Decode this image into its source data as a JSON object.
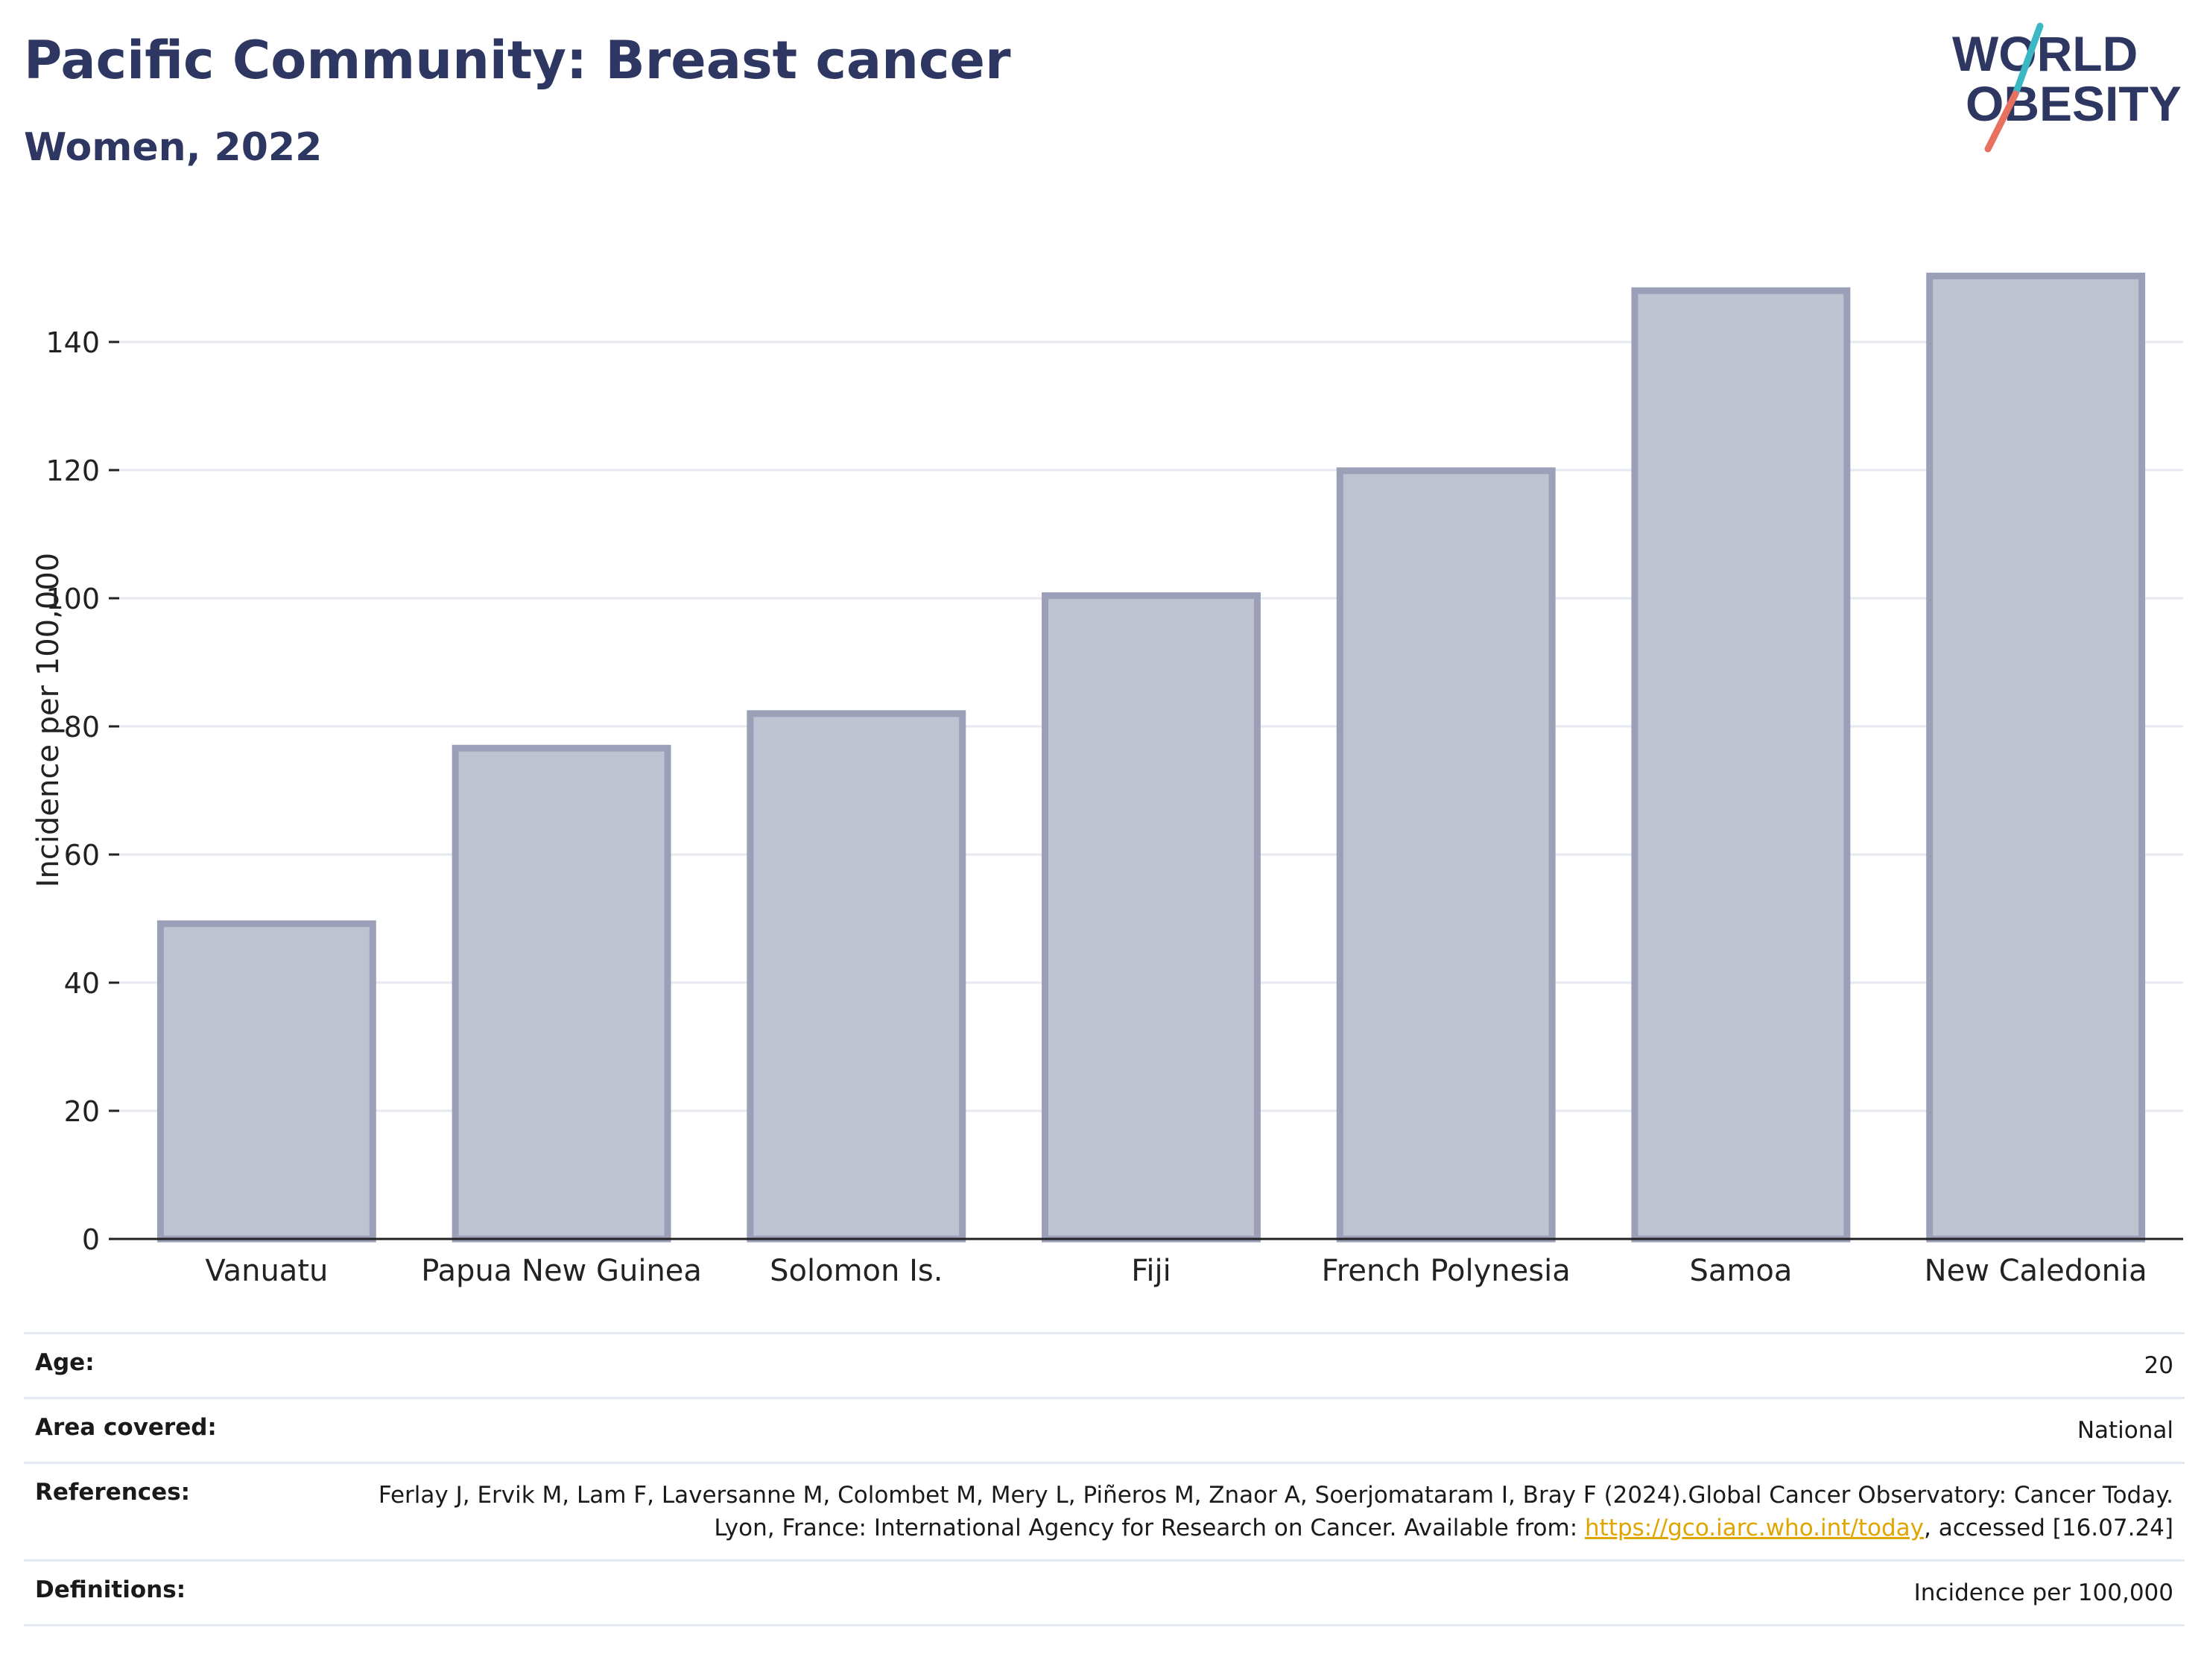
{
  "header": {
    "title": "Pacific Community: Breast cancer",
    "subtitle": "Women, 2022"
  },
  "logo": {
    "line1": "WORLD",
    "line2": "OBESITY",
    "colors": {
      "text": "#2d3761",
      "slash_teal": "#3bb8c4",
      "slash_coral": "#e8705f"
    }
  },
  "colors": {
    "bar_fill": "#bfc3d1",
    "bar_stroke": "#9ba0b8",
    "grid": "#e6e9ef",
    "axis": "#222222"
  },
  "chart_data": {
    "type": "bar",
    "title": "",
    "xlabel": "",
    "ylabel": "Incidence per 100,000",
    "categories": [
      "Vanuatu",
      "Papua New Guinea",
      "Solomon Is.",
      "Fiji",
      "French Polynesia",
      "Samoa",
      "New Caledonia"
    ],
    "values": [
      49.2,
      76.6,
      82.0,
      100.4,
      119.9,
      148.0,
      150.3
    ],
    "ylim": [
      0,
      155
    ],
    "yticks": [
      0,
      20,
      40,
      60,
      80,
      100,
      120,
      140
    ],
    "grid": true,
    "legend": "none"
  },
  "meta": {
    "age_label": "Age:",
    "age_value": "20",
    "area_label": "Area covered:",
    "area_value": "National",
    "references_label": "References:",
    "references_text_1": "Ferlay J, Ervik M, Lam F, Laversanne M, Colombet M, Mery L, Piñeros M, Znaor A, Soerjomataram I, Bray F (2024).Global Cancer Observatory: Cancer Today. Lyon, France: International Agency for Research on Cancer. Available from: ",
    "references_link": "https://gco.iarc.who.int/today",
    "references_text_2": ", accessed [16.07.24]",
    "definitions_label": "Definitions:",
    "definitions_value": "Incidence per 100,000"
  }
}
